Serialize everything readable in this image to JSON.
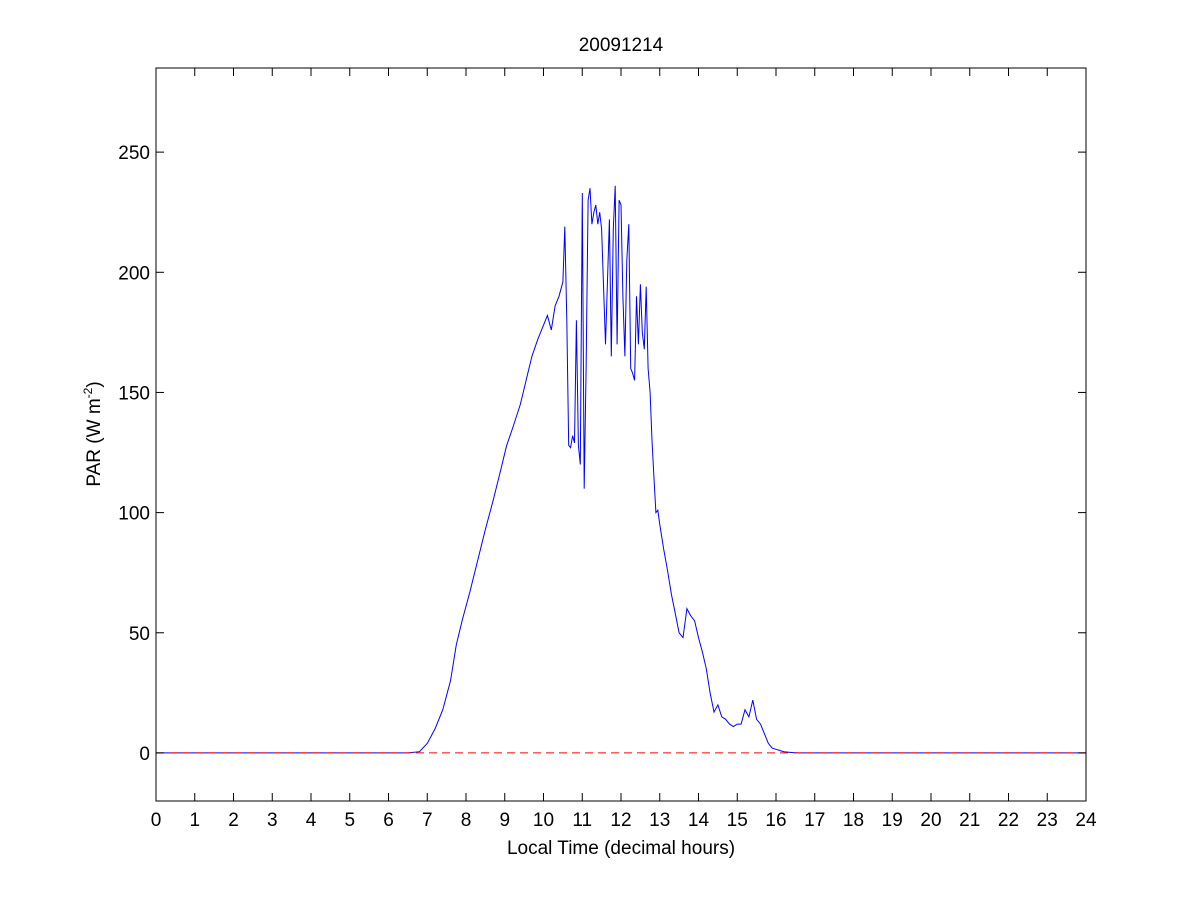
{
  "chart_data": {
    "type": "line",
    "title": "20091214",
    "xlabel": "Local Time (decimal hours)",
    "ylabel": {
      "main": "PAR (W m",
      "sup": "-2",
      "tail": ")"
    },
    "xlim": [
      0,
      24
    ],
    "ylim": [
      -20,
      285
    ],
    "xticks": [
      0,
      1,
      2,
      3,
      4,
      5,
      6,
      7,
      8,
      9,
      10,
      11,
      12,
      13,
      14,
      15,
      16,
      17,
      18,
      19,
      20,
      21,
      22,
      23,
      24
    ],
    "yticks": [
      0,
      50,
      100,
      150,
      200,
      250
    ],
    "grid": false,
    "colors": {
      "series": "#0000ff",
      "reference": "#ff0000",
      "axes": "#000000"
    },
    "series": [
      {
        "style": "solid",
        "color": "#0000ff",
        "x": [
          0,
          6.5,
          6.8,
          7.0,
          7.2,
          7.4,
          7.6,
          7.75,
          7.9,
          8.1,
          8.3,
          8.5,
          8.7,
          8.9,
          9.05,
          9.2,
          9.4,
          9.55,
          9.7,
          9.85,
          10.0,
          10.1,
          10.2,
          10.3,
          10.4,
          10.5,
          10.55,
          10.6,
          10.65,
          10.7,
          10.75,
          10.8,
          10.85,
          10.9,
          10.95,
          11.0,
          11.05,
          11.1,
          11.15,
          11.2,
          11.25,
          11.3,
          11.35,
          11.4,
          11.45,
          11.5,
          11.6,
          11.7,
          11.75,
          11.8,
          11.85,
          11.9,
          11.95,
          12.0,
          12.05,
          12.1,
          12.15,
          12.2,
          12.25,
          12.3,
          12.35,
          12.4,
          12.45,
          12.5,
          12.55,
          12.6,
          12.65,
          12.7,
          12.75,
          12.8,
          12.85,
          12.9,
          12.95,
          13.0,
          13.1,
          13.2,
          13.3,
          13.4,
          13.5,
          13.6,
          13.7,
          13.8,
          13.9,
          14.0,
          14.1,
          14.2,
          14.3,
          14.4,
          14.5,
          14.6,
          14.7,
          14.8,
          14.9,
          15.0,
          15.1,
          15.2,
          15.3,
          15.4,
          15.5,
          15.6,
          15.7,
          15.8,
          15.9,
          16.0,
          16.1,
          16.2,
          16.4,
          16.6,
          16.8,
          17.0,
          17.5,
          24
        ],
        "y": [
          0,
          0,
          0.5,
          4,
          10,
          18,
          30,
          45,
          55,
          67,
          80,
          93,
          105,
          118,
          128,
          135,
          145,
          155,
          165,
          172,
          178,
          182,
          176,
          186,
          190,
          196,
          219,
          180,
          128,
          127,
          132,
          129,
          180,
          128,
          120,
          233,
          110,
          160,
          230,
          235,
          220,
          225,
          228,
          220,
          225,
          218,
          170,
          222,
          165,
          218,
          236,
          170,
          230,
          228,
          190,
          165,
          205,
          220,
          160,
          158,
          155,
          190,
          170,
          195,
          175,
          168,
          194,
          160,
          150,
          130,
          115,
          100,
          101,
          95,
          85,
          76,
          66,
          58,
          50,
          48,
          60,
          57,
          55,
          48,
          42,
          35,
          25,
          17,
          20,
          15,
          14,
          12,
          11,
          12,
          12,
          18,
          15,
          22,
          14,
          12,
          8,
          4,
          2,
          1.5,
          1,
          0.5,
          0.2,
          0,
          0,
          0,
          0,
          0
        ]
      },
      {
        "style": "dashed",
        "color": "#ff0000",
        "x": [
          0,
          24
        ],
        "y": [
          0,
          0
        ]
      }
    ]
  }
}
